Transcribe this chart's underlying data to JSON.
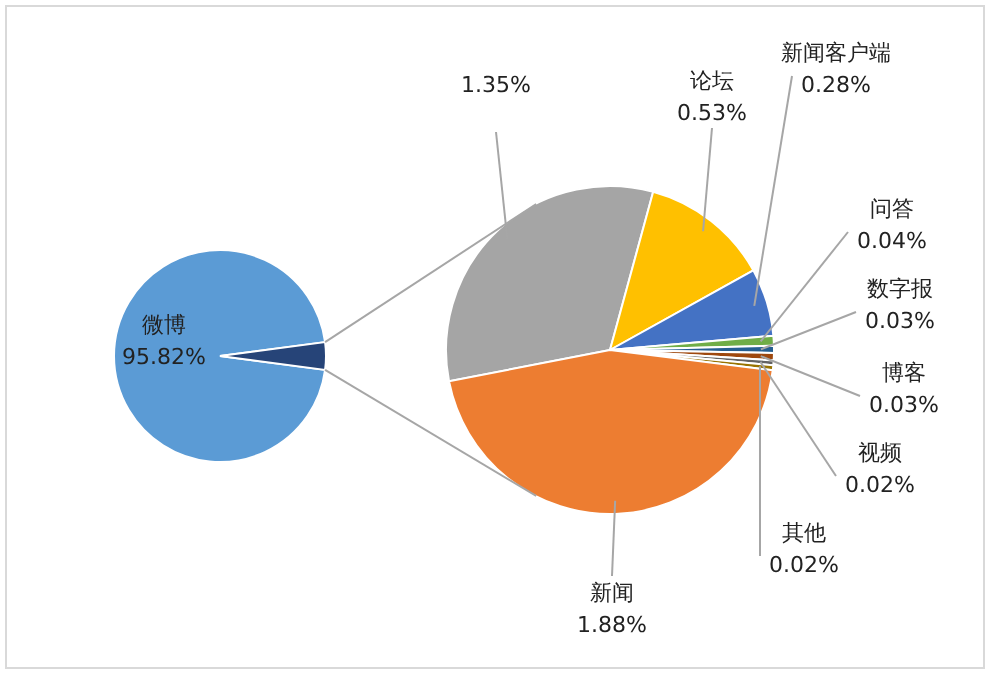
{
  "chart_data": [
    {
      "type": "pie",
      "categories": [
        "微博",
        null
      ],
      "values": [
        95.82,
        4.18
      ],
      "colors": [
        "#5b9bd5",
        "#264478"
      ],
      "value_labels": [
        "95.82%",
        null
      ]
    },
    {
      "type": "pie",
      "categories": [
        null,
        "论坛",
        "新闻客户端",
        "问答",
        "数字报",
        "博客",
        "视频",
        "其他",
        "新闻"
      ],
      "values": [
        1.35,
        0.53,
        0.28,
        0.04,
        0.03,
        0.03,
        0.02,
        0.02,
        1.88
      ],
      "colors": [
        "#a5a5a5",
        "#ffc000",
        "#4472c4",
        "#70ad47",
        "#255e91",
        "#9e480e",
        "#636363",
        "#997300",
        "#ed7d31"
      ],
      "value_labels": [
        "1.35%",
        "0.53%",
        "0.28%",
        "0.04%",
        "0.03%",
        "0.03%",
        "0.02%",
        "0.02%",
        "1.88%"
      ]
    }
  ]
}
